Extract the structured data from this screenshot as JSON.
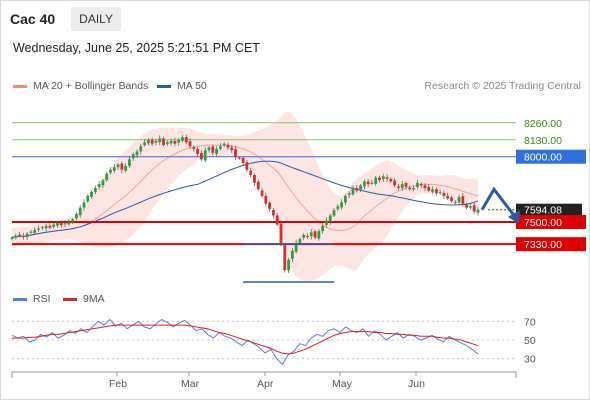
{
  "header": {
    "title": "Cac 40",
    "timeframe": "DAILY",
    "date": "Wednesday, June 25, 2025 5:21:51 PM CET"
  },
  "legend": {
    "items": [
      {
        "name": "MA 20 + Bollinger Bands",
        "color": "#f08a80"
      },
      {
        "name": "MA 50",
        "color": "#2c5aa0"
      }
    ],
    "credit": "Research © 2025 Trading Central"
  },
  "rsi_legend": {
    "items": [
      {
        "name": "RSI",
        "color": "#5b7fd6"
      },
      {
        "name": "9MA",
        "color": "#e02020"
      }
    ]
  },
  "colors": {
    "up": "#2e9e3e",
    "down": "#d0312d",
    "resistance": "#2f6fe0",
    "support": "#e00000",
    "target": "#8cc26a",
    "bb_fill": "#fde1df",
    "arrow": "#2c5aa0"
  },
  "chart_data": [
    {
      "type": "candlestick",
      "title": "Cac 40",
      "ylim": [
        7040,
        8450
      ],
      "x_labels": [
        "Feb",
        "Mar",
        "Apr",
        "May",
        "Jun"
      ],
      "levels": [
        {
          "value": 8260.0,
          "label": "8260.00",
          "kind": "target"
        },
        {
          "value": 8130.0,
          "label": "8130.00",
          "kind": "target"
        },
        {
          "value": 8000.0,
          "label": "8000.00",
          "kind": "resistance"
        },
        {
          "value": 7594.08,
          "label": "7594.08",
          "kind": "last"
        },
        {
          "value": 7500.0,
          "label": "7500.00",
          "kind": "support"
        },
        {
          "value": 7330.0,
          "label": "7330.00",
          "kind": "support"
        }
      ],
      "closes": [
        7380,
        7395,
        7400,
        7385,
        7410,
        7425,
        7440,
        7450,
        7460,
        7470,
        7455,
        7480,
        7495,
        7475,
        7490,
        7500,
        7520,
        7560,
        7610,
        7650,
        7700,
        7730,
        7760,
        7790,
        7820,
        7870,
        7900,
        7920,
        7940,
        7900,
        7930,
        7980,
        8020,
        8040,
        8080,
        8110,
        8130,
        8100,
        8120,
        8140,
        8090,
        8110,
        8120,
        8100,
        8130,
        8150,
        8110,
        8080,
        8060,
        8020,
        7980,
        8050,
        8070,
        8030,
        8060,
        8080,
        8100,
        8070,
        8050,
        8000,
        7990,
        7950,
        7900,
        7860,
        7800,
        7750,
        7700,
        7640,
        7600,
        7550,
        7480,
        7330,
        7130,
        7210,
        7280,
        7340,
        7370,
        7400,
        7390,
        7420,
        7380,
        7430,
        7470,
        7510,
        7550,
        7590,
        7620,
        7650,
        7700,
        7720,
        7760,
        7740,
        7780,
        7810,
        7790,
        7800,
        7840,
        7820,
        7850,
        7830,
        7810,
        7780,
        7760,
        7790,
        7770,
        7750,
        7760,
        7800,
        7780,
        7760,
        7740,
        7750,
        7720,
        7730,
        7700,
        7680,
        7660,
        7650,
        7690,
        7640,
        7610,
        7620,
        7580,
        7594
      ],
      "ma50_end": 7640,
      "forecast_path": [
        7594,
        7750,
        7530
      ]
    },
    {
      "type": "line",
      "series": [
        {
          "name": "RSI",
          "values": [
            55,
            52,
            54,
            48,
            50,
            56,
            53,
            58,
            52,
            55,
            60,
            57,
            62,
            58,
            64,
            70,
            66,
            72,
            65,
            68,
            62,
            66,
            70,
            64,
            62,
            67,
            72,
            69,
            64,
            68,
            71,
            66,
            60,
            62,
            56,
            52,
            58,
            54,
            52,
            48,
            44,
            50,
            46,
            42,
            36,
            40,
            30,
            24,
            34,
            38,
            46,
            44,
            52,
            56,
            54,
            60,
            62,
            58,
            64,
            60,
            58,
            62,
            54,
            60,
            56,
            50,
            54,
            58,
            52,
            56,
            54,
            50,
            52,
            55,
            51,
            48,
            54,
            50,
            47,
            44,
            40,
            35
          ]
        },
        {
          "name": "9MA",
          "values": [
            52,
            52,
            52,
            53,
            53,
            54,
            55,
            56,
            56,
            57,
            58,
            59,
            60,
            61,
            62,
            63,
            64,
            65,
            66,
            66,
            66,
            66,
            66,
            66,
            66,
            66,
            66,
            66,
            66,
            66,
            66,
            65,
            64,
            63,
            62,
            60,
            58,
            57,
            55,
            53,
            51,
            49,
            47,
            45,
            43,
            41,
            38,
            36,
            35,
            36,
            38,
            40,
            43,
            46,
            49,
            52,
            55,
            57,
            58,
            59,
            59,
            59,
            59,
            58,
            58,
            57,
            57,
            56,
            56,
            55,
            55,
            54,
            54,
            54,
            53,
            52,
            52,
            51,
            50,
            48,
            46,
            44
          ]
        }
      ],
      "y_ticks": [
        30,
        50,
        70
      ],
      "ylim": [
        20,
        80
      ]
    }
  ]
}
